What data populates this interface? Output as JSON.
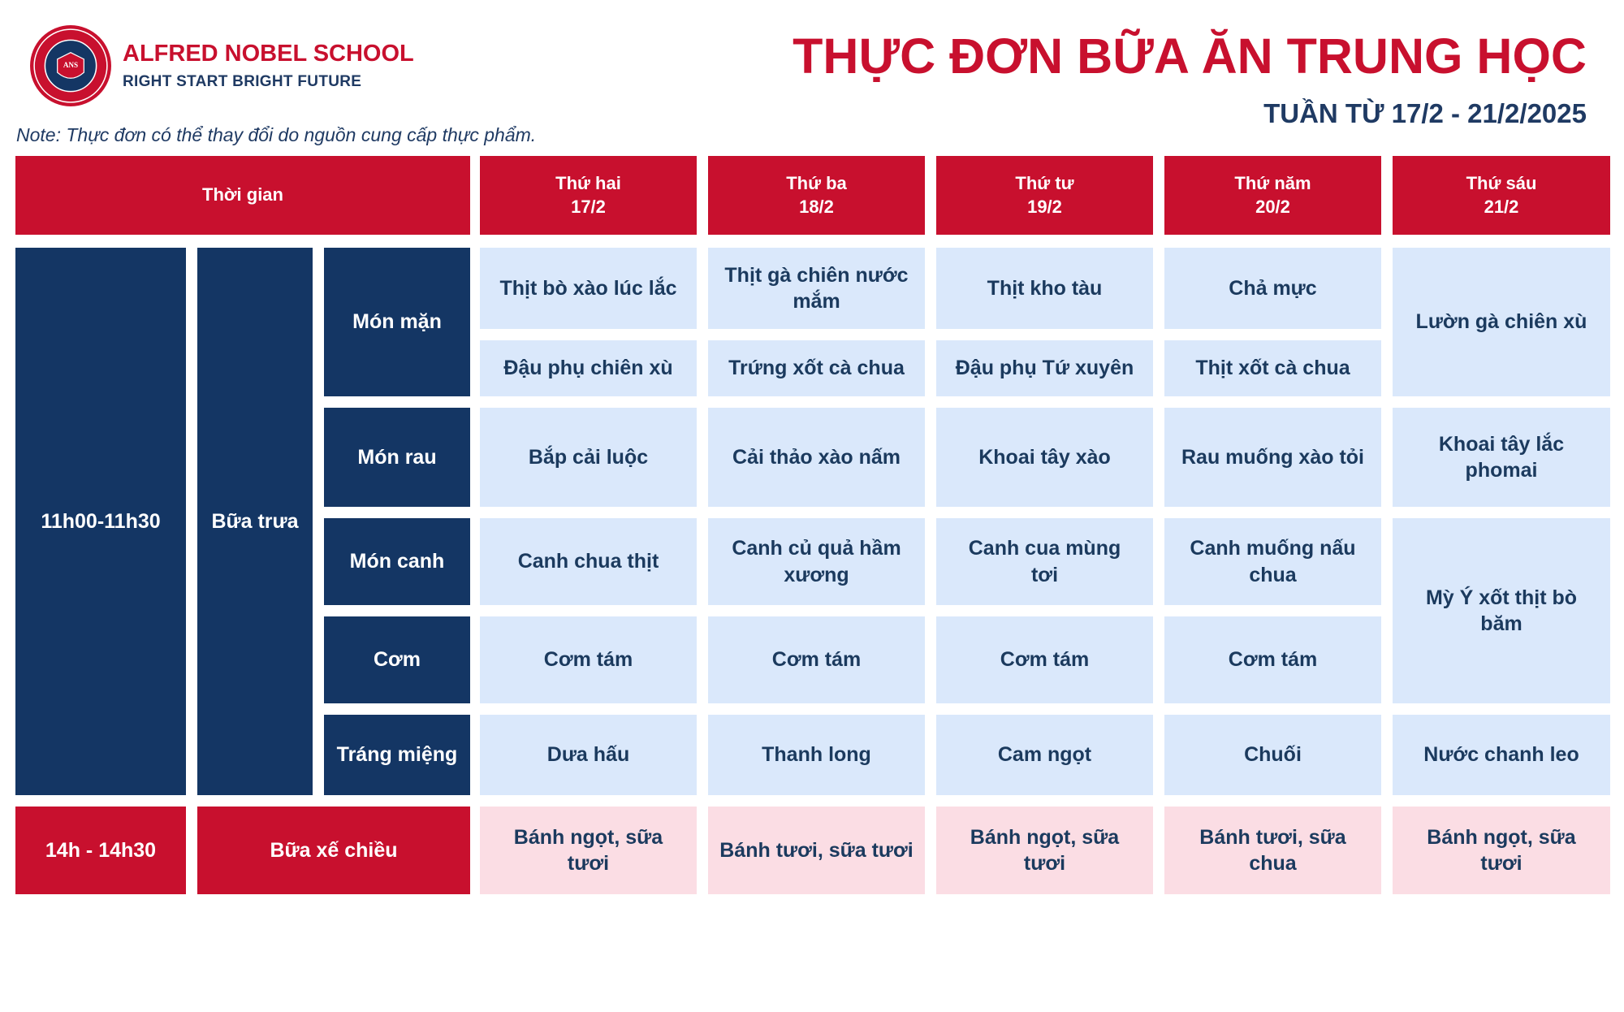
{
  "school": {
    "name": "ALFRED NOBEL SCHOOL",
    "motto": "RIGHT START  BRIGHT FUTURE",
    "logo_text": "ANS"
  },
  "title": "THỰC ĐƠN BỮA ĂN TRUNG HỌC",
  "week": "TUẦN TỪ 17/2 - 21/2/2025",
  "note": "Note: Thực đơn có thể thay đổi do nguồn cung cấp thực phẩm.",
  "colors": {
    "brand_red": "#c8102e",
    "navy": "#143664",
    "light_blue": "#dae8fb",
    "light_pink": "#fbdde4"
  },
  "header": {
    "time_label": "Thời gian",
    "days": [
      {
        "name": "Thứ hai",
        "date": "17/2"
      },
      {
        "name": "Thứ ba",
        "date": "18/2"
      },
      {
        "name": "Thứ tư",
        "date": "19/2"
      },
      {
        "name": "Thứ năm",
        "date": "20/2"
      },
      {
        "name": "Thứ sáu",
        "date": "21/2"
      }
    ]
  },
  "lunch": {
    "time": "11h00-11h30",
    "meal": "Bữa trưa",
    "categories": {
      "main": "Món mặn",
      "veg": "Món rau",
      "soup": "Món canh",
      "rice": "Cơm",
      "dessert": "Tráng miệng"
    },
    "main1": [
      "Thịt bò xào lúc lắc",
      "Thịt gà chiên nước mắm",
      "Thịt kho tàu",
      "Chả mực"
    ],
    "main2": [
      "Đậu phụ chiên xù",
      "Trứng xốt cà chua",
      "Đậu phụ Tứ xuyên",
      "Thịt xốt cà chua"
    ],
    "fri_main": "Lườn gà chiên xù",
    "veg": [
      "Bắp cải luộc",
      "Cải thảo xào nấm",
      "Khoai tây xào",
      "Rau muống xào tỏi",
      "Khoai tây lắc phomai"
    ],
    "soup": [
      "Canh chua thịt",
      "Canh củ quả hầm xương",
      "Canh cua mùng tơi",
      "Canh muống nấu chua"
    ],
    "rice": [
      "Cơm tám",
      "Cơm tám",
      "Cơm tám",
      "Cơm tám"
    ],
    "fri_soup_rice": "Mỳ Ý xốt thịt bò băm",
    "dessert": [
      "Dưa hấu",
      "Thanh long",
      "Cam ngọt",
      "Chuối",
      "Nước chanh leo"
    ]
  },
  "snack": {
    "time": "14h - 14h30",
    "meal": "Bữa xế chiều",
    "items": [
      "Bánh ngọt, sữa tươi",
      "Bánh tươi, sữa tươi",
      "Bánh ngọt, sữa tươi",
      "Bánh tươi, sữa chua",
      "Bánh ngọt, sữa tươi"
    ]
  }
}
